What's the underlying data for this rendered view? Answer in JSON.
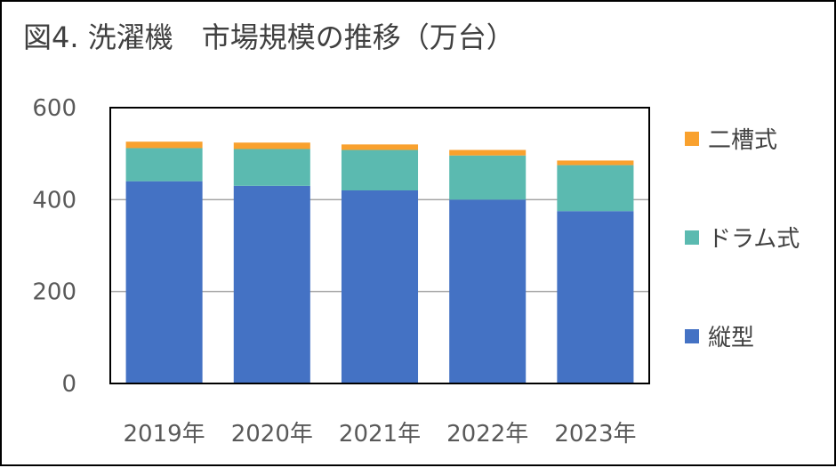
{
  "chart_data": {
    "type": "bar",
    "stacked": true,
    "title": "図4. 洗濯機　市場規模の推移（万台）",
    "categories": [
      "2019年",
      "2020年",
      "2021年",
      "2022年",
      "2023年"
    ],
    "ylim": [
      0,
      600
    ],
    "yticks": [
      0,
      200,
      400,
      600
    ],
    "grid": true,
    "legend_position": "right",
    "series": [
      {
        "name": "縦型",
        "color": "#4472C4",
        "values": [
          440,
          430,
          420,
          400,
          375
        ]
      },
      {
        "name": "ドラム式",
        "color": "#5BBAB0",
        "values": [
          72,
          80,
          88,
          96,
          100
        ]
      },
      {
        "name": "二槽式",
        "color": "#F9A12E",
        "values": [
          14,
          14,
          12,
          12,
          10
        ]
      }
    ]
  }
}
